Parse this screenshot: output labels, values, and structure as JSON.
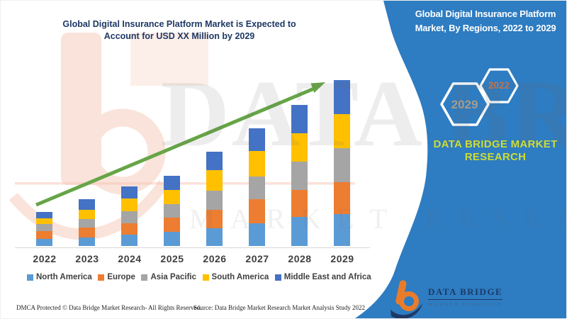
{
  "left_panel": {
    "title_line1": "Global Digital Insurance Platform Market is Expected to",
    "title_line2": "Account for USD XX Million by 2029",
    "title_color": "#1F3864"
  },
  "sidebar": {
    "background_color": "#2E7CC1",
    "title_line1": "Global Digital Insurance Platform",
    "title_line2": "Market, By Regions, 2022 to 2029",
    "title_color": "#FFFFFF",
    "hexagon_back": {
      "label": "2029",
      "text_color": "#A59C8B"
    },
    "hexagon_front": {
      "label": "2022",
      "text_color": "#C2734E"
    },
    "brand_line1": "DATA BRIDGE MARKET",
    "brand_line2": "RESEARCH",
    "brand_color": "#CDDC35",
    "logo": {
      "monogram": "b",
      "name": "DATA BRIDGE",
      "tagline": "MARKET RESEARCH"
    }
  },
  "footer": {
    "dmca": "DMCA Protected © Data Bridge Market Research- All Rights Reserved.",
    "source": "Source: Data Bridge Market Research Market Analysis Study 2022"
  },
  "watermark": {
    "line1": "DATA BRIDGE",
    "line2": "MARKET RESEARCH"
  },
  "chart_data": {
    "type": "bar",
    "stacked": true,
    "title": "Global Digital Insurance Platform Market is Expected to Account for USD XX Million by 2029",
    "xlabel": "",
    "ylabel": "",
    "categories": [
      "2022",
      "2023",
      "2024",
      "2025",
      "2026",
      "2027",
      "2028",
      "2029"
    ],
    "series": [
      {
        "name": "North America",
        "color": "#5B9BD5",
        "values": [
          10,
          12,
          16,
          20,
          25,
          32,
          41,
          45
        ]
      },
      {
        "name": "Europe",
        "color": "#ED7D31",
        "values": [
          11,
          14,
          16,
          20,
          26,
          34,
          38,
          45
        ]
      },
      {
        "name": "Asia Pacific",
        "color": "#A5A5A5",
        "values": [
          10,
          12,
          17,
          19,
          27,
          32,
          40,
          48
        ]
      },
      {
        "name": "South America",
        "color": "#FFC000",
        "values": [
          8,
          13,
          18,
          20,
          29,
          36,
          40,
          48
        ]
      },
      {
        "name": "Middle East and Africa",
        "color": "#4472C4",
        "values": [
          9,
          15,
          17,
          20,
          26,
          32,
          40,
          48
        ]
      }
    ],
    "totals": [
      48,
      66,
      84,
      99,
      133,
      166,
      199,
      234
    ],
    "values_unit": "relative height units — chart displays no numeric y-axis (market value shown as 'USD XX Million')",
    "ylim": [
      0,
      240
    ],
    "grid": false,
    "legend_position": "bottom",
    "trend_arrow": {
      "present": true,
      "color": "#66A546",
      "direction": "up-right"
    }
  }
}
